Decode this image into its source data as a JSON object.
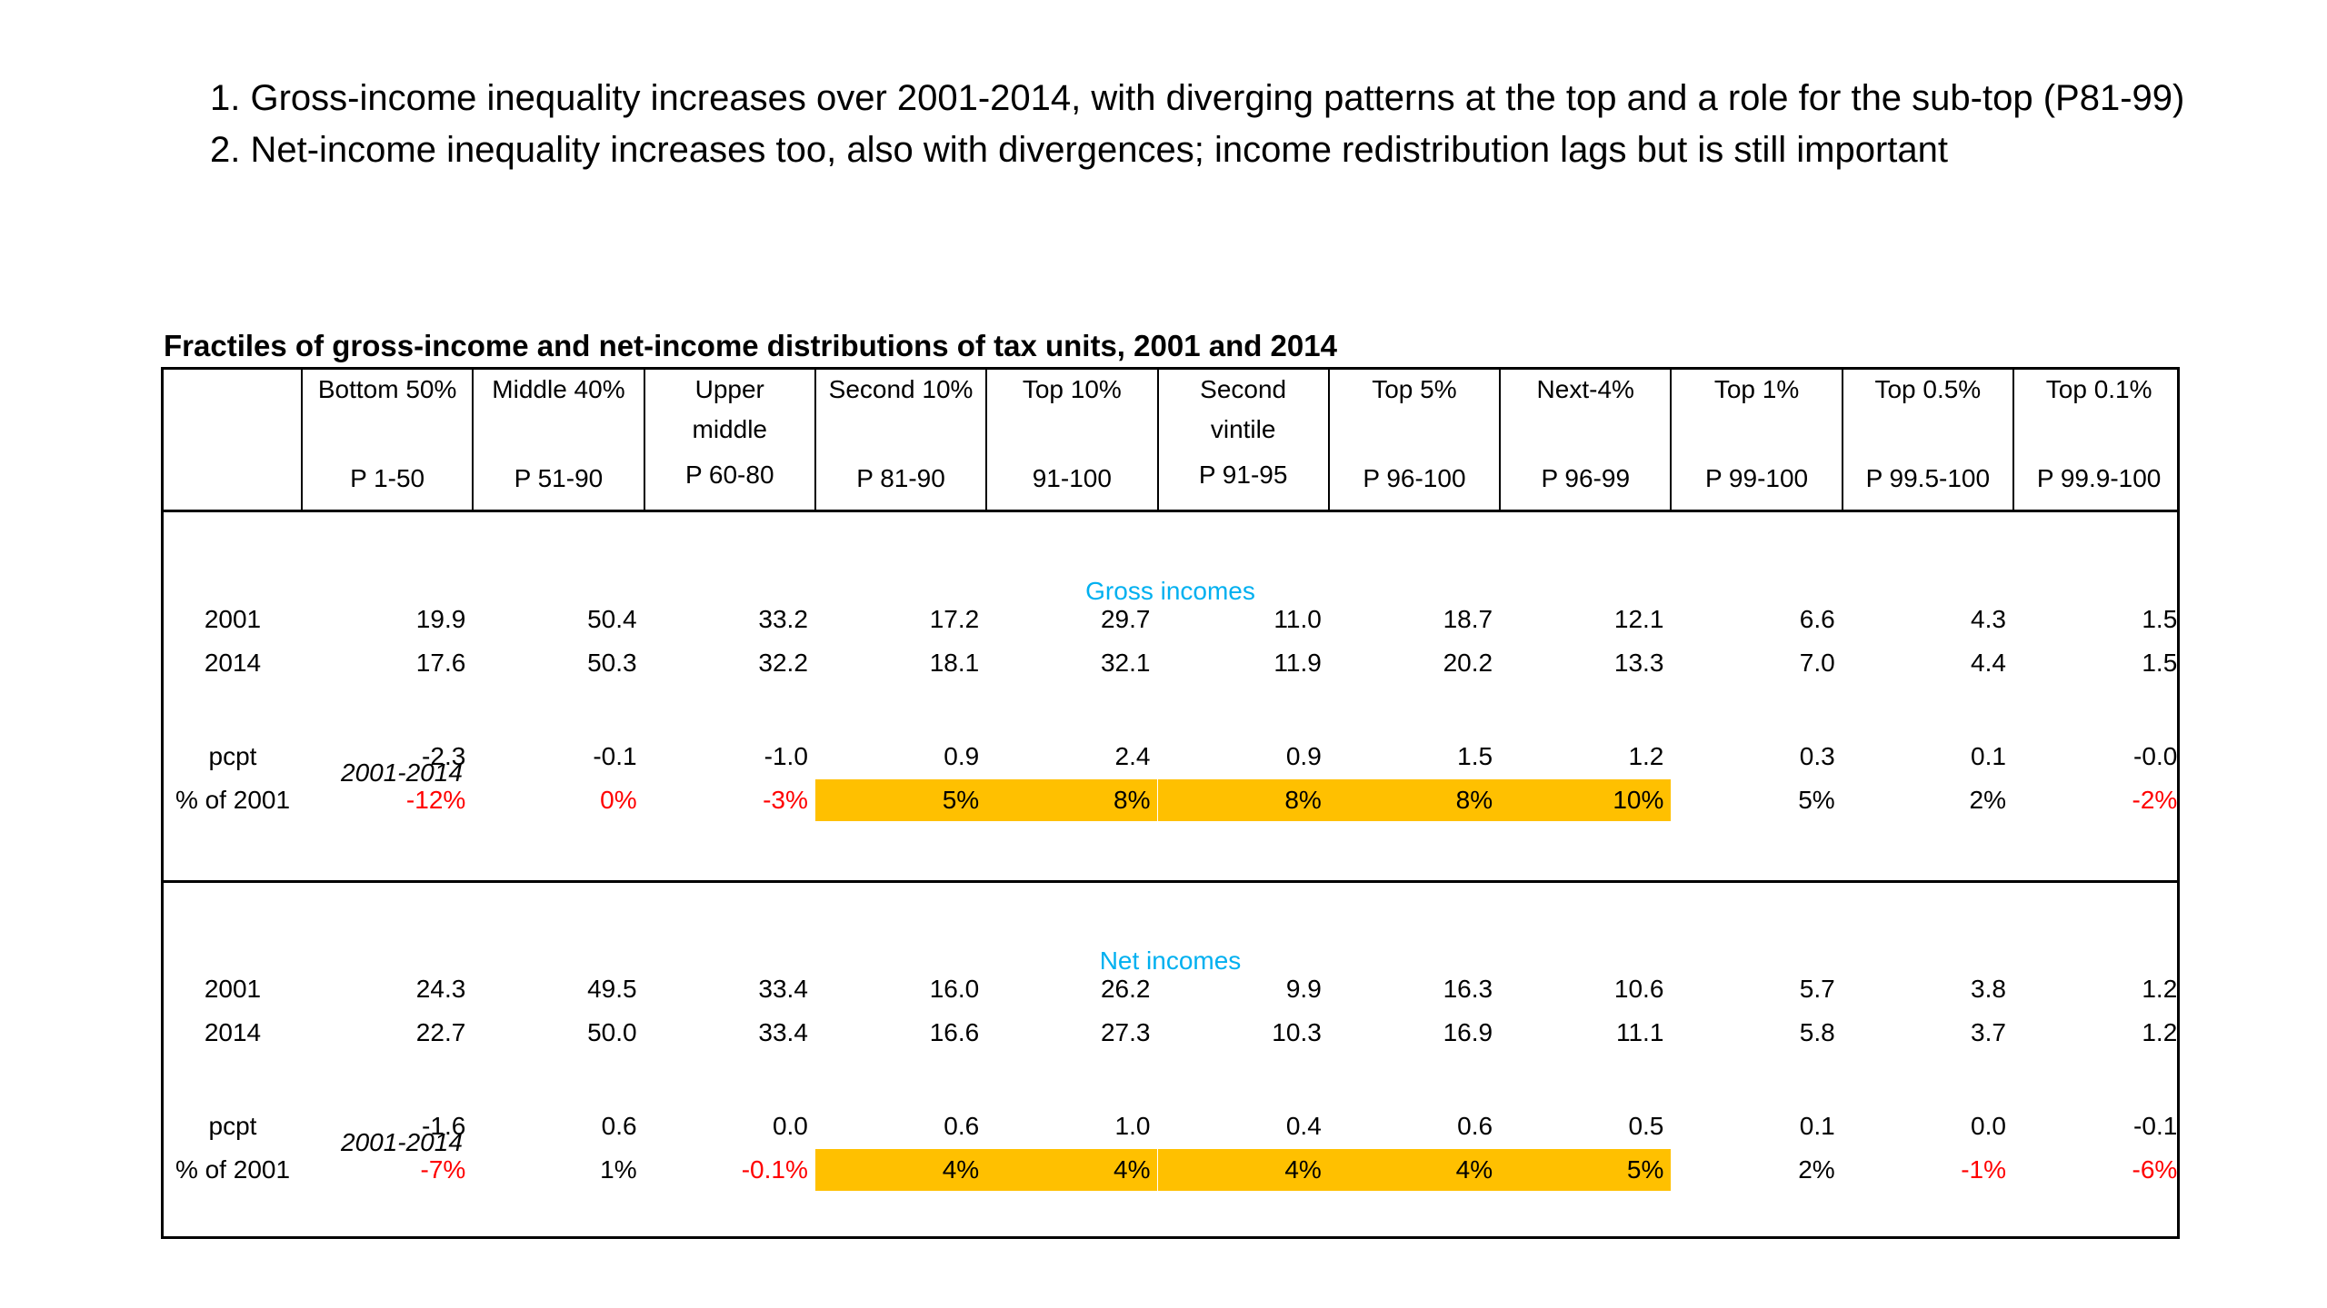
{
  "intro": {
    "line1": "1. Gross-income inequality increases over 2001-2014, with diverging patterns at the top and a role for the sub-top (P81-99)",
    "line2": "2. Net-income inequality increases too, also with divergences; income redistribution lags but is still important"
  },
  "table": {
    "title": "Fractiles of gross-income and net-income distributions of tax units, 2001 and 2014",
    "columns": [
      {
        "l1": "Bottom 50%",
        "l2": "",
        "l3": "P 1-50"
      },
      {
        "l1": "Middle 40%",
        "l2": "",
        "l3": "P 51-90"
      },
      {
        "l1": "Upper",
        "l2": "middle",
        "l3": "P 60-80"
      },
      {
        "l1": "Second 10%",
        "l2": "",
        "l3": "P 81-90"
      },
      {
        "l1": "Top 10%",
        "l2": "",
        "l3": "91-100"
      },
      {
        "l1": "Second",
        "l2": "vintile",
        "l3": "P 91-95"
      },
      {
        "l1": "Top 5%",
        "l2": "",
        "l3": "P 96-100"
      },
      {
        "l1": "Next-4%",
        "l2": "",
        "l3": "P 96-99"
      },
      {
        "l1": "Top 1%",
        "l2": "",
        "l3": "P 99-100"
      },
      {
        "l1": "Top 0.5%",
        "l2": "",
        "l3": "P 99.5-100"
      },
      {
        "l1": "Top 0.1%",
        "l2": "",
        "l3": "P 99.9-100"
      }
    ],
    "sections": [
      {
        "label": "Gross incomes",
        "period": "2001-2014",
        "rows": [
          {
            "label": "2001",
            "values": [
              "19.9",
              "50.4",
              "33.2",
              "17.2",
              "29.7",
              "11.0",
              "18.7",
              "12.1",
              "6.6",
              "4.3",
              "1.5"
            ]
          },
          {
            "label": "2014",
            "values": [
              "17.6",
              "50.3",
              "32.2",
              "18.1",
              "32.1",
              "11.9",
              "20.2",
              "13.3",
              "7.0",
              "4.4",
              "1.5"
            ]
          },
          {
            "label": "pcpt",
            "values": [
              "-2.3",
              "-0.1",
              "-1.0",
              "0.9",
              "2.4",
              "0.9",
              "1.5",
              "1.2",
              "0.3",
              "0.1",
              "-0.0"
            ]
          },
          {
            "label": "% of 2001",
            "values": [
              "-12%",
              "0%",
              "-3%",
              "5%",
              "8%",
              "8%",
              "8%",
              "10%",
              "5%",
              "2%",
              "-2%"
            ]
          }
        ]
      },
      {
        "label": "Net incomes",
        "period": "2001-2014",
        "rows": [
          {
            "label": "2001",
            "values": [
              "24.3",
              "49.5",
              "33.4",
              "16.0",
              "26.2",
              "9.9",
              "16.3",
              "10.6",
              "5.7",
              "3.8",
              "1.2"
            ]
          },
          {
            "label": "2014",
            "values": [
              "22.7",
              "50.0",
              "33.4",
              "16.6",
              "27.3",
              "10.3",
              "16.9",
              "11.1",
              "5.8",
              "3.7",
              "1.2"
            ]
          },
          {
            "label": "pcpt",
            "values": [
              "-1.6",
              "0.6",
              "0.0",
              "0.6",
              "1.0",
              "0.4",
              "0.6",
              "0.5",
              "0.1",
              "0.0",
              "-0.1"
            ]
          },
          {
            "label": "% of 2001",
            "values": [
              "-7%",
              "1%",
              "-0.1%",
              "4%",
              "4%",
              "4%",
              "4%",
              "5%",
              "2%",
              "-1%",
              "-6%"
            ]
          }
        ]
      }
    ],
    "colors": {
      "highlight": "#ffc000",
      "negative": "#ff0000",
      "section_label": "#00b0f0"
    }
  }
}
